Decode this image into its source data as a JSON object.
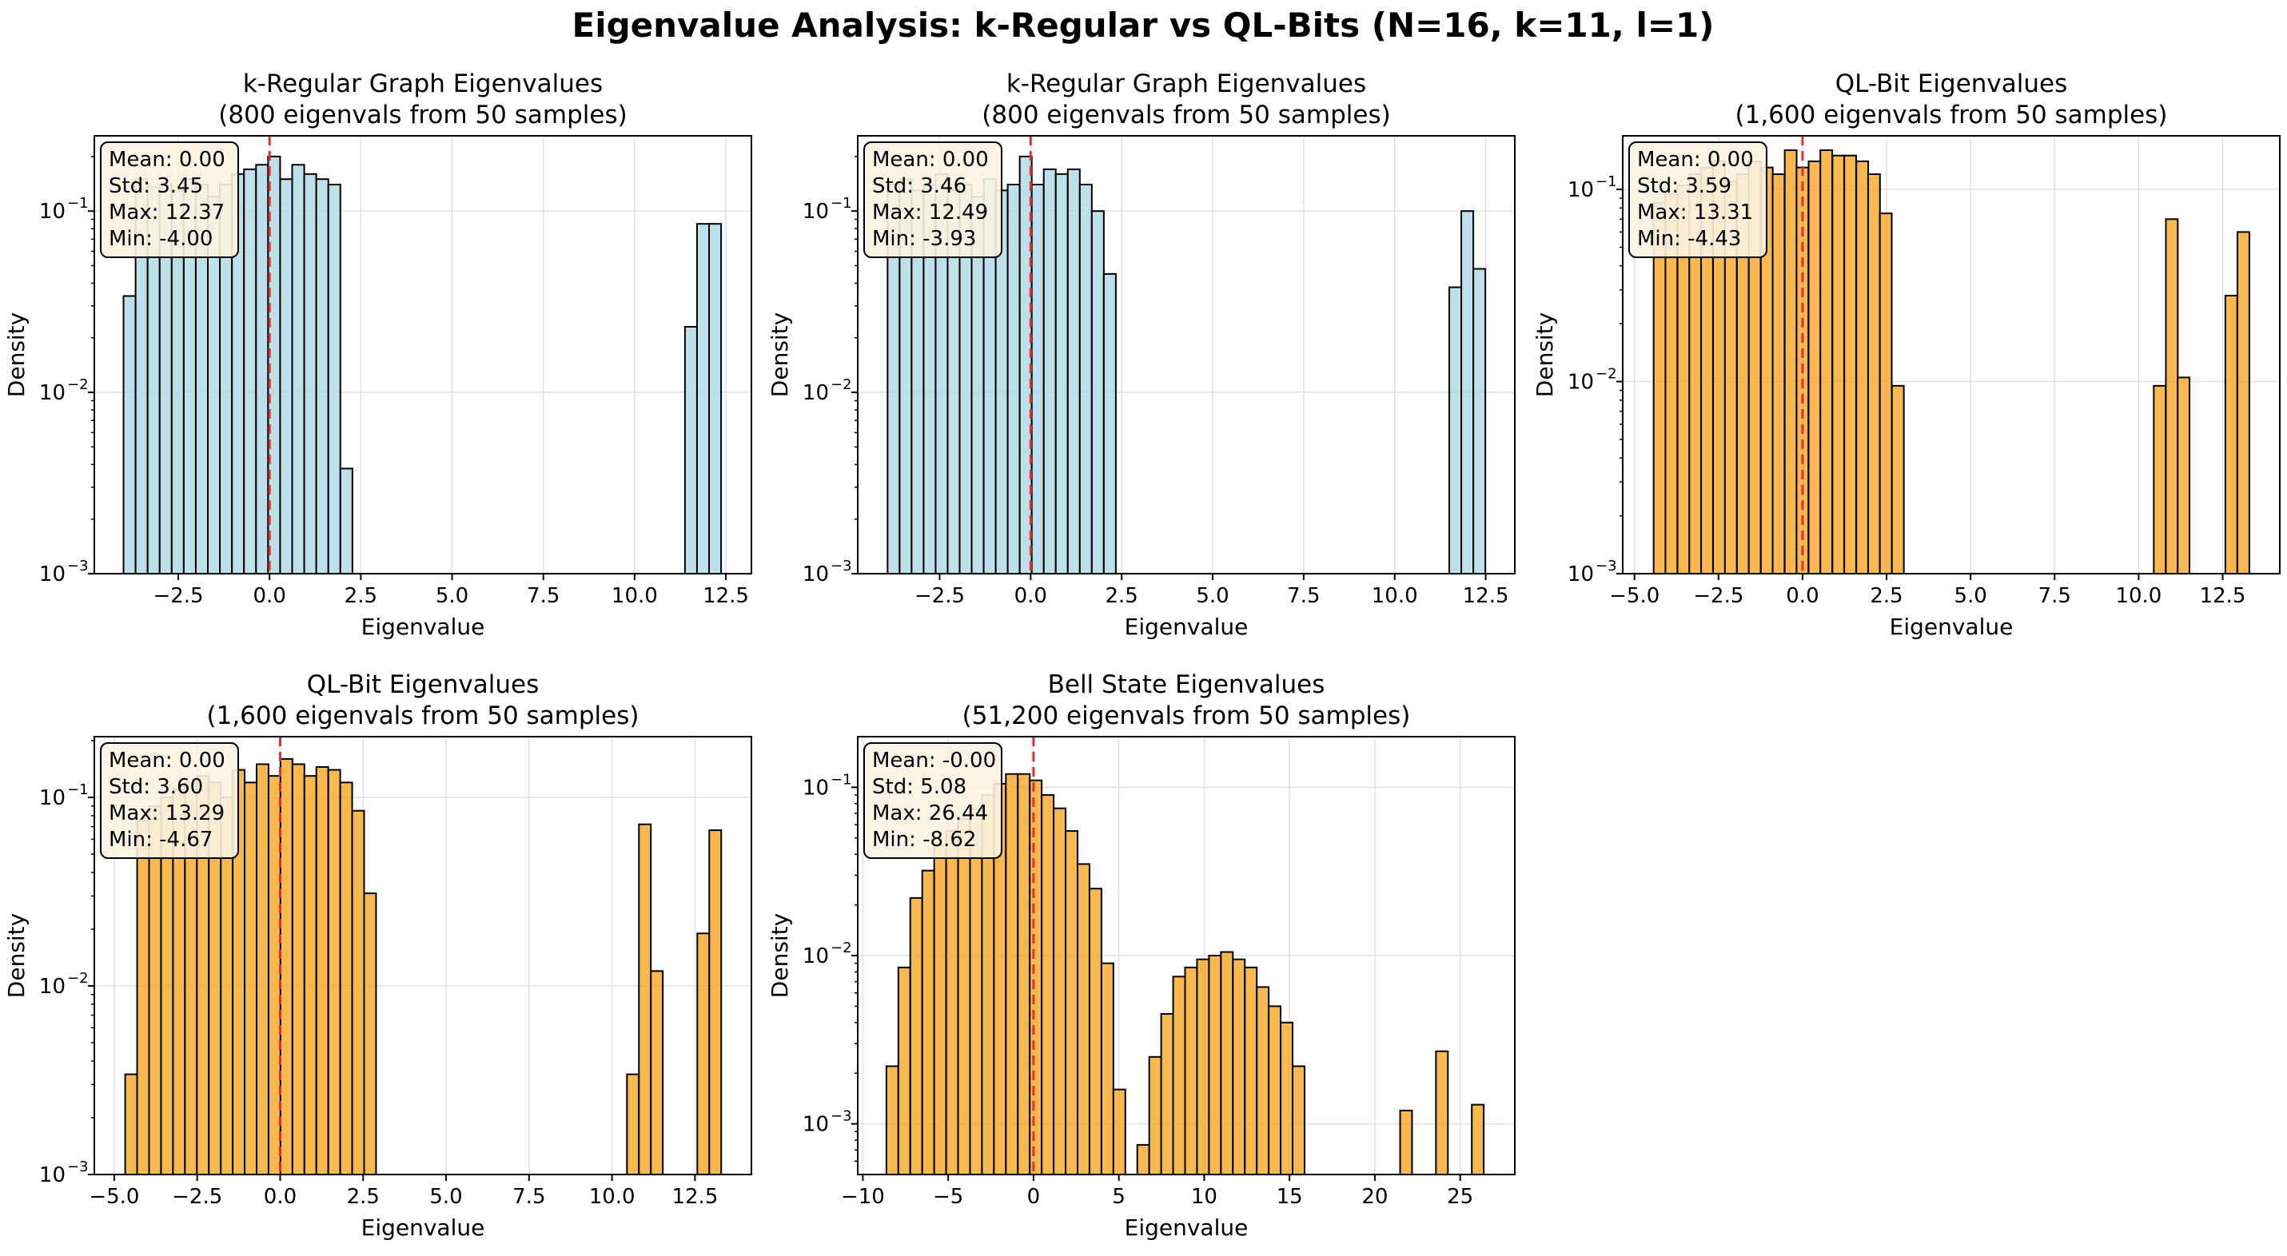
{
  "figure": {
    "title": "Eigenvalue Analysis: k-Regular vs QL-Bits (N=16, k=11, l=1)"
  },
  "colors": {
    "kreg": "#add8e6",
    "qlbit": "#f5a623",
    "edge": "#000000",
    "meanline": "#e03030",
    "grid": "#e0e0e0"
  },
  "chart_data": [
    {
      "type": "bar",
      "title": "k-Regular Graph Eigenvalues",
      "subtitle": "(800 eigenvals from 50 samples)",
      "xlabel": "Eigenvalue",
      "ylabel": "Density",
      "yscale": "log",
      "ylim": [
        0.001,
        0.26
      ],
      "xlim": [
        -4.8,
        13.2
      ],
      "xticks": [
        -2.5,
        0,
        2.5,
        5,
        7.5,
        10,
        12.5
      ],
      "xticklabels": [
        "−2.5",
        "0.0",
        "2.5",
        "5.0",
        "7.5",
        "10.0",
        "12.5"
      ],
      "yticks": [
        0.001,
        0.01,
        0.1
      ],
      "ytick_exponents": [
        "−3",
        "−2",
        "−1"
      ],
      "color_key": "kreg",
      "bin_width": 0.33,
      "bins": [
        {
          "x": -4.0,
          "value": 0.034
        },
        {
          "x": -3.67,
          "value": 0.15
        },
        {
          "x": -3.34,
          "value": 0.135
        },
        {
          "x": -3.01,
          "value": 0.14
        },
        {
          "x": -2.68,
          "value": 0.13
        },
        {
          "x": -2.35,
          "value": 0.15
        },
        {
          "x": -2.02,
          "value": 0.14
        },
        {
          "x": -1.69,
          "value": 0.12
        },
        {
          "x": -1.36,
          "value": 0.14
        },
        {
          "x": -1.03,
          "value": 0.16
        },
        {
          "x": -0.7,
          "value": 0.17
        },
        {
          "x": -0.37,
          "value": 0.18
        },
        {
          "x": -0.04,
          "value": 0.2
        },
        {
          "x": 0.29,
          "value": 0.15
        },
        {
          "x": 0.62,
          "value": 0.18
        },
        {
          "x": 0.95,
          "value": 0.16
        },
        {
          "x": 1.28,
          "value": 0.15
        },
        {
          "x": 1.61,
          "value": 0.14
        },
        {
          "x": 1.94,
          "value": 0.0038
        },
        {
          "x": 11.38,
          "value": 0.023
        },
        {
          "x": 11.71,
          "value": 0.085
        },
        {
          "x": 12.04,
          "value": 0.085
        }
      ],
      "mean_line": 0,
      "stats": [
        "Mean: 0.00",
        "Std: 3.45",
        "Max: 12.37",
        "Min: -4.00"
      ]
    },
    {
      "type": "bar",
      "title": "k-Regular Graph Eigenvalues",
      "subtitle": "(800 eigenvals from 50 samples)",
      "xlabel": "Eigenvalue",
      "ylabel": "Density",
      "yscale": "log",
      "ylim": [
        0.001,
        0.26
      ],
      "xlim": [
        -4.75,
        13.3
      ],
      "xticks": [
        -2.5,
        0,
        2.5,
        5,
        7.5,
        10,
        12.5
      ],
      "xticklabels": [
        "−2.5",
        "0.0",
        "2.5",
        "5.0",
        "7.5",
        "10.0",
        "12.5"
      ],
      "yticks": [
        0.001,
        0.01,
        0.1
      ],
      "ytick_exponents": [
        "−3",
        "−2",
        "−1"
      ],
      "color_key": "kreg",
      "bin_width": 0.33,
      "bins": [
        {
          "x": -3.93,
          "value": 0.14
        },
        {
          "x": -3.6,
          "value": 0.15
        },
        {
          "x": -3.27,
          "value": 0.13
        },
        {
          "x": -2.94,
          "value": 0.14
        },
        {
          "x": -2.61,
          "value": 0.16
        },
        {
          "x": -2.28,
          "value": 0.13
        },
        {
          "x": -1.95,
          "value": 0.14
        },
        {
          "x": -1.62,
          "value": 0.12
        },
        {
          "x": -1.29,
          "value": 0.15
        },
        {
          "x": -0.96,
          "value": 0.13
        },
        {
          "x": -0.63,
          "value": 0.14
        },
        {
          "x": -0.3,
          "value": 0.2
        },
        {
          "x": 0.03,
          "value": 0.14
        },
        {
          "x": 0.36,
          "value": 0.17
        },
        {
          "x": 0.69,
          "value": 0.16
        },
        {
          "x": 1.02,
          "value": 0.17
        },
        {
          "x": 1.35,
          "value": 0.14
        },
        {
          "x": 1.68,
          "value": 0.1
        },
        {
          "x": 2.01,
          "value": 0.045
        },
        {
          "x": 11.5,
          "value": 0.038
        },
        {
          "x": 11.83,
          "value": 0.1
        },
        {
          "x": 12.16,
          "value": 0.048
        }
      ],
      "mean_line": 0,
      "stats": [
        "Mean: 0.00",
        "Std: 3.46",
        "Max: 12.49",
        "Min: -3.93"
      ]
    },
    {
      "type": "bar",
      "title": "QL-Bit Eigenvalues",
      "subtitle": "(1,600 eigenvals from 50 samples)",
      "xlabel": "Eigenvalue",
      "ylabel": "Density",
      "yscale": "log",
      "ylim": [
        0.001,
        0.19
      ],
      "xlim": [
        -5.35,
        14.2
      ],
      "xticks": [
        -5,
        -2.5,
        0,
        2.5,
        5,
        7.5,
        10,
        12.5
      ],
      "xticklabels": [
        "−5.0",
        "−2.5",
        "0.0",
        "2.5",
        "5.0",
        "7.5",
        "10.0",
        "12.5"
      ],
      "yticks": [
        0.001,
        0.01,
        0.1
      ],
      "ytick_exponents": [
        "−3",
        "−2",
        "−1"
      ],
      "color_key": "qlbit",
      "bin_width": 0.354,
      "bins": [
        {
          "x": -4.43,
          "value": 0.085
        },
        {
          "x": -4.08,
          "value": 0.095
        },
        {
          "x": -3.72,
          "value": 0.105
        },
        {
          "x": -3.37,
          "value": 0.12
        },
        {
          "x": -3.02,
          "value": 0.13
        },
        {
          "x": -2.66,
          "value": 0.14
        },
        {
          "x": -2.31,
          "value": 0.11
        },
        {
          "x": -1.95,
          "value": 0.12
        },
        {
          "x": -1.6,
          "value": 0.14
        },
        {
          "x": -1.24,
          "value": 0.13
        },
        {
          "x": -0.89,
          "value": 0.12
        },
        {
          "x": -0.53,
          "value": 0.16
        },
        {
          "x": -0.18,
          "value": 0.13
        },
        {
          "x": 0.18,
          "value": 0.14
        },
        {
          "x": 0.53,
          "value": 0.16
        },
        {
          "x": 0.89,
          "value": 0.15
        },
        {
          "x": 1.24,
          "value": 0.15
        },
        {
          "x": 1.6,
          "value": 0.14
        },
        {
          "x": 1.95,
          "value": 0.12
        },
        {
          "x": 2.3,
          "value": 0.075
        },
        {
          "x": 2.66,
          "value": 0.0095
        },
        {
          "x": 10.45,
          "value": 0.0095
        },
        {
          "x": 10.81,
          "value": 0.07
        },
        {
          "x": 11.16,
          "value": 0.0105
        },
        {
          "x": 12.58,
          "value": 0.028
        },
        {
          "x": 12.94,
          "value": 0.06
        }
      ],
      "mean_line": 0,
      "stats": [
        "Mean: 0.00",
        "Std: 3.59",
        "Max: 13.31",
        "Min: -4.43"
      ]
    },
    {
      "type": "bar",
      "title": "QL-Bit Eigenvalues",
      "subtitle": "(1,600 eigenvals from 50 samples)",
      "xlabel": "Eigenvalue",
      "ylabel": "Density",
      "yscale": "log",
      "ylim": [
        0.001,
        0.21
      ],
      "xlim": [
        -5.6,
        14.2
      ],
      "xticks": [
        -5,
        -2.5,
        0,
        2.5,
        5,
        7.5,
        10,
        12.5
      ],
      "xticklabels": [
        "−5.0",
        "−2.5",
        "0.0",
        "2.5",
        "5.0",
        "7.5",
        "10.0",
        "12.5"
      ],
      "yticks": [
        0.001,
        0.01,
        0.1
      ],
      "ytick_exponents": [
        "−3",
        "−2",
        "−1"
      ],
      "color_key": "qlbit",
      "bin_width": 0.36,
      "bins": [
        {
          "x": -4.67,
          "value": 0.0034
        },
        {
          "x": -4.31,
          "value": 0.075
        },
        {
          "x": -3.95,
          "value": 0.09
        },
        {
          "x": -3.59,
          "value": 0.1
        },
        {
          "x": -3.23,
          "value": 0.11
        },
        {
          "x": -2.87,
          "value": 0.12
        },
        {
          "x": -2.51,
          "value": 0.13
        },
        {
          "x": -2.15,
          "value": 0.12
        },
        {
          "x": -1.79,
          "value": 0.1
        },
        {
          "x": -1.43,
          "value": 0.14
        },
        {
          "x": -1.07,
          "value": 0.12
        },
        {
          "x": -0.71,
          "value": 0.15
        },
        {
          "x": -0.35,
          "value": 0.13
        },
        {
          "x": 0.01,
          "value": 0.16
        },
        {
          "x": 0.37,
          "value": 0.15
        },
        {
          "x": 0.73,
          "value": 0.13
        },
        {
          "x": 1.09,
          "value": 0.145
        },
        {
          "x": 1.45,
          "value": 0.14
        },
        {
          "x": 1.81,
          "value": 0.12
        },
        {
          "x": 2.17,
          "value": 0.085
        },
        {
          "x": 2.53,
          "value": 0.031
        },
        {
          "x": 10.45,
          "value": 0.0034
        },
        {
          "x": 10.81,
          "value": 0.072
        },
        {
          "x": 11.17,
          "value": 0.012
        },
        {
          "x": 12.57,
          "value": 0.019
        },
        {
          "x": 12.93,
          "value": 0.067
        }
      ],
      "mean_line": 0,
      "stats": [
        "Mean: 0.00",
        "Std: 3.60",
        "Max: 13.29",
        "Min: -4.67"
      ]
    },
    {
      "type": "bar",
      "title": "Bell State Eigenvalues",
      "subtitle": "(51,200 eigenvals from 50 samples)",
      "xlabel": "Eigenvalue",
      "ylabel": "Density",
      "yscale": "log",
      "ylim": [
        0.0005,
        0.2
      ],
      "xlim": [
        -10.3,
        28.2
      ],
      "xticks": [
        -10,
        -5,
        0,
        5,
        10,
        15,
        20,
        25
      ],
      "xticklabels": [
        "−10",
        "−5",
        "0",
        "5",
        "10",
        "15",
        "20",
        "25"
      ],
      "yticks": [
        0.001,
        0.01,
        0.1
      ],
      "ytick_exponents": [
        "−3",
        "−2",
        "−1"
      ],
      "color_key": "qlbit",
      "bin_width": 0.7,
      "bins": [
        {
          "x": -8.62,
          "value": 0.0022
        },
        {
          "x": -7.92,
          "value": 0.0085
        },
        {
          "x": -7.22,
          "value": 0.022
        },
        {
          "x": -6.52,
          "value": 0.032
        },
        {
          "x": -5.82,
          "value": 0.045
        },
        {
          "x": -5.12,
          "value": 0.055
        },
        {
          "x": -4.42,
          "value": 0.065
        },
        {
          "x": -3.72,
          "value": 0.075
        },
        {
          "x": -3.02,
          "value": 0.09
        },
        {
          "x": -2.32,
          "value": 0.105
        },
        {
          "x": -1.62,
          "value": 0.12
        },
        {
          "x": -0.92,
          "value": 0.12
        },
        {
          "x": -0.22,
          "value": 0.11
        },
        {
          "x": 0.48,
          "value": 0.09
        },
        {
          "x": 1.18,
          "value": 0.075
        },
        {
          "x": 1.88,
          "value": 0.055
        },
        {
          "x": 2.58,
          "value": 0.035
        },
        {
          "x": 3.28,
          "value": 0.025
        },
        {
          "x": 3.98,
          "value": 0.009
        },
        {
          "x": 4.68,
          "value": 0.0016
        },
        {
          "x": 6.08,
          "value": 0.00075
        },
        {
          "x": 6.78,
          "value": 0.0025
        },
        {
          "x": 7.48,
          "value": 0.0045
        },
        {
          "x": 8.18,
          "value": 0.0075
        },
        {
          "x": 8.88,
          "value": 0.0085
        },
        {
          "x": 9.58,
          "value": 0.0095
        },
        {
          "x": 10.28,
          "value": 0.01
        },
        {
          "x": 10.98,
          "value": 0.0105
        },
        {
          "x": 11.68,
          "value": 0.0095
        },
        {
          "x": 12.38,
          "value": 0.0085
        },
        {
          "x": 13.08,
          "value": 0.0065
        },
        {
          "x": 13.78,
          "value": 0.005
        },
        {
          "x": 14.48,
          "value": 0.004
        },
        {
          "x": 15.18,
          "value": 0.0022
        },
        {
          "x": 21.48,
          "value": 0.0012
        },
        {
          "x": 23.58,
          "value": 0.0027
        },
        {
          "x": 25.68,
          "value": 0.0013
        }
      ],
      "mean_line": 0,
      "stats": [
        "Mean: -0.00",
        "Std: 5.08",
        "Max: 26.44",
        "Min: -8.62"
      ]
    }
  ]
}
